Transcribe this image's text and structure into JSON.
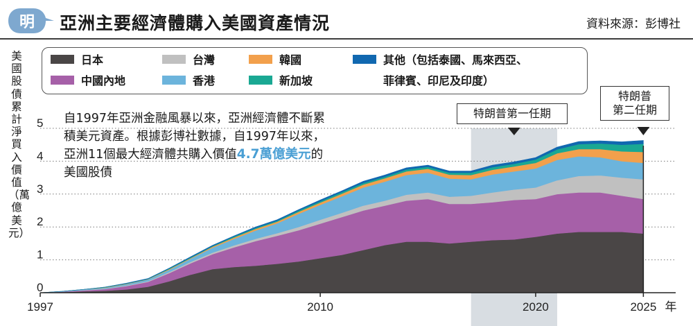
{
  "header": {
    "logo_char": "明",
    "title": "亞洲主要經濟體購入美國資產情況",
    "source": "資料來源：彭博社"
  },
  "colors": {
    "japan": "#4a4646",
    "mainland": "#a660a8",
    "taiwan": "#c0c0c0",
    "hongkong": "#6cb4dc",
    "korea": "#f2a04c",
    "singapore": "#1aa893",
    "others": "#1168b0",
    "logo": "#7ea8cf",
    "highlight": "#4a9fd4",
    "shade": "#d8dde2"
  },
  "legend": {
    "japan": "日本",
    "mainland": "中國內地",
    "taiwan": "台灣",
    "hongkong": "香港",
    "korea": "韓國",
    "singapore": "新加坡",
    "others_line1": "其他（包括泰國、馬來西亞、",
    "others_line2": "菲律賓、印尼及印度）"
  },
  "annotation": {
    "before": "自1997年亞洲金融風暴以來，亞洲經濟體不斷累積美元資產。根據彭博社數據，自1997年以來，亞洲11個最大經濟體共購入價值",
    "highlight": "4.7萬億美元",
    "after": "的美國股債"
  },
  "terms": {
    "first": "特朗普第一任期",
    "second_line1": "特朗普",
    "second_line2": "第二任期"
  },
  "chart_data": {
    "type": "area",
    "stacked": true,
    "ylabel": "美國股債累計淨買入價值（萬億美元）",
    "xlabel": "年",
    "xlim": [
      1997,
      2026.5
    ],
    "ylim": [
      0,
      5
    ],
    "yticks": [
      0,
      1,
      2,
      3,
      4,
      5
    ],
    "xticks": [
      1997,
      2010,
      2020,
      2025
    ],
    "grid": "horizontal-dotted",
    "shaded_periods": [
      {
        "label": "特朗普第一任期",
        "start": 2017.0,
        "end": 2021.0
      },
      {
        "label": "特朗普第二任期",
        "at": 2025.0
      }
    ],
    "x": [
      1997,
      1998,
      1999,
      2000,
      2001,
      2002,
      2003,
      2004,
      2005,
      2006,
      2007,
      2008,
      2009,
      2010,
      2011,
      2012,
      2013,
      2014,
      2015,
      2016,
      2017,
      2018,
      2019,
      2020,
      2021,
      2022,
      2023,
      2024,
      2025
    ],
    "series": [
      {
        "name": "日本",
        "key": "japan",
        "values": [
          0,
          0.02,
          0.04,
          0.06,
          0.1,
          0.18,
          0.35,
          0.55,
          0.72,
          0.78,
          0.82,
          0.88,
          0.95,
          1.05,
          1.15,
          1.3,
          1.45,
          1.55,
          1.55,
          1.5,
          1.55,
          1.6,
          1.62,
          1.7,
          1.8,
          1.85,
          1.85,
          1.85,
          1.8
        ]
      },
      {
        "name": "中國內地",
        "key": "mainland",
        "values": [
          0,
          0.01,
          0.03,
          0.05,
          0.1,
          0.15,
          0.25,
          0.35,
          0.45,
          0.6,
          0.75,
          0.85,
          0.95,
          1.05,
          1.15,
          1.2,
          1.2,
          1.25,
          1.3,
          1.2,
          1.15,
          1.15,
          1.2,
          1.15,
          1.2,
          1.2,
          1.2,
          1.1,
          1.05
        ]
      },
      {
        "name": "台灣",
        "key": "taiwan",
        "values": [
          0,
          0,
          0.01,
          0.01,
          0.02,
          0.02,
          0.03,
          0.04,
          0.05,
          0.06,
          0.07,
          0.08,
          0.1,
          0.12,
          0.13,
          0.15,
          0.15,
          0.18,
          0.2,
          0.22,
          0.25,
          0.3,
          0.32,
          0.35,
          0.42,
          0.5,
          0.52,
          0.55,
          0.6
        ]
      },
      {
        "name": "香港",
        "key": "hongkong",
        "values": [
          0,
          0.01,
          0.02,
          0.03,
          0.04,
          0.05,
          0.07,
          0.1,
          0.15,
          0.2,
          0.25,
          0.3,
          0.4,
          0.45,
          0.5,
          0.55,
          0.58,
          0.6,
          0.6,
          0.55,
          0.5,
          0.55,
          0.55,
          0.58,
          0.62,
          0.6,
          0.55,
          0.5,
          0.5
        ]
      },
      {
        "name": "韓國",
        "key": "korea",
        "values": [
          0,
          0,
          0,
          0.01,
          0.01,
          0.01,
          0.02,
          0.02,
          0.03,
          0.04,
          0.05,
          0.05,
          0.06,
          0.07,
          0.08,
          0.09,
          0.1,
          0.11,
          0.12,
          0.12,
          0.13,
          0.14,
          0.15,
          0.17,
          0.2,
          0.22,
          0.25,
          0.3,
          0.33
        ]
      },
      {
        "name": "新加坡",
        "key": "singapore",
        "values": [
          0,
          0,
          0,
          0.01,
          0.01,
          0.01,
          0.02,
          0.02,
          0.02,
          0.03,
          0.03,
          0.03,
          0.04,
          0.04,
          0.05,
          0.05,
          0.05,
          0.06,
          0.06,
          0.06,
          0.07,
          0.08,
          0.08,
          0.1,
          0.12,
          0.15,
          0.17,
          0.2,
          0.25
        ]
      },
      {
        "name": "其他（包括泰國、馬來西亞、菲律賓、印尼及印度）",
        "key": "others",
        "values": [
          0,
          0,
          0,
          0,
          0.01,
          0.01,
          0.01,
          0.02,
          0.02,
          0.02,
          0.03,
          0.03,
          0.03,
          0.04,
          0.04,
          0.05,
          0.05,
          0.05,
          0.05,
          0.05,
          0.05,
          0.06,
          0.06,
          0.06,
          0.07,
          0.08,
          0.08,
          0.09,
          0.1
        ]
      }
    ]
  }
}
